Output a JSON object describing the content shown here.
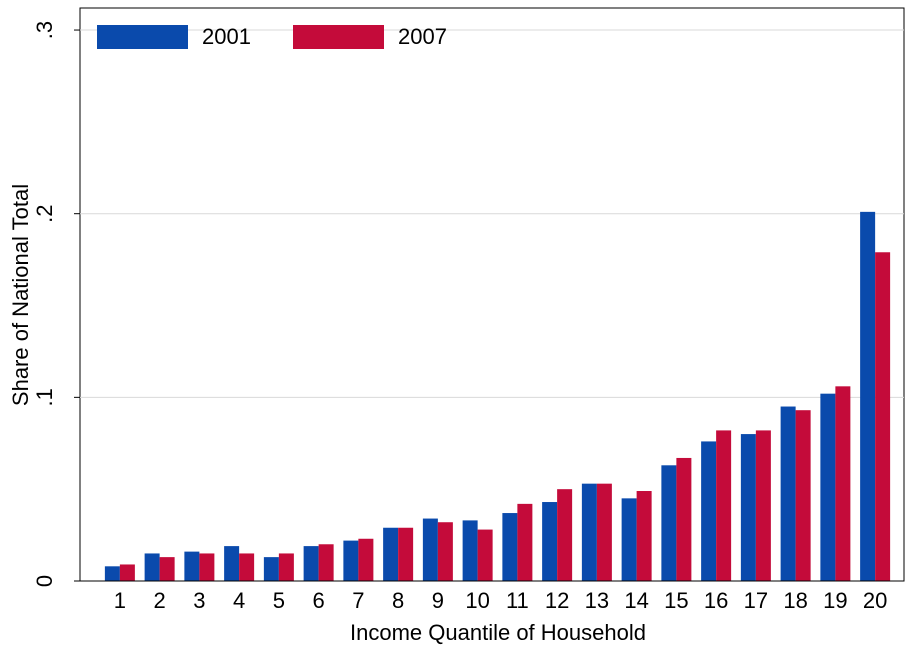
{
  "chart_data": {
    "type": "bar",
    "y_label": "Share of National Total",
    "x_label": "Income Quantile of Household",
    "categories": [
      "1",
      "2",
      "3",
      "4",
      "5",
      "6",
      "7",
      "8",
      "9",
      "10",
      "11",
      "12",
      "13",
      "14",
      "15",
      "16",
      "17",
      "18",
      "19",
      "20"
    ],
    "series": [
      {
        "name": "2001",
        "color": "#0a4aac",
        "values": [
          0.008,
          0.015,
          0.016,
          0.019,
          0.013,
          0.019,
          0.022,
          0.029,
          0.034,
          0.033,
          0.037,
          0.043,
          0.053,
          0.045,
          0.063,
          0.076,
          0.08,
          0.095,
          0.102,
          0.201
        ]
      },
      {
        "name": "2007",
        "color": "#c40b3a",
        "values": [
          0.009,
          0.013,
          0.015,
          0.015,
          0.015,
          0.02,
          0.023,
          0.029,
          0.032,
          0.028,
          0.042,
          0.05,
          0.053,
          0.049,
          0.067,
          0.082,
          0.082,
          0.093,
          0.106,
          0.179
        ]
      }
    ],
    "ylim": [
      0,
      0.312
    ],
    "yticks": [
      0,
      {
        "value": 0.1,
        "label": ".1"
      },
      {
        "value": 0.2,
        "label": ".2"
      },
      {
        "value": 0.3,
        "label": ".3"
      }
    ],
    "grid": true,
    "legend": "top-left"
  }
}
